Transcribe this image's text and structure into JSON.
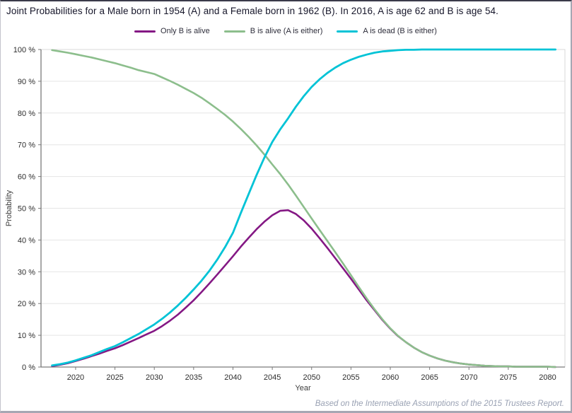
{
  "header": {
    "title": "Joint Probabilities for a Male born in 1954 (A) and a Female born in 1962 (B). In 2016, A is age 62 and B is age 54."
  },
  "legend": {
    "items": [
      {
        "label": "Only B is alive",
        "color": "#841884"
      },
      {
        "label": "B is alive (A is either)",
        "color": "#8CBE8C"
      },
      {
        "label": "A is dead (B is either)",
        "color": "#00C3D6"
      }
    ]
  },
  "footer": {
    "text": "Based on the Intermediate Assumptions of the 2015 Trustees Report."
  },
  "colors": {
    "grid": "#e5e5e5",
    "axis": "#7a7a7a",
    "frame_light": "#d9d9d9",
    "tick_text": "#2d2d2d",
    "axis_label_text": "#3c3c3c"
  },
  "chart_data": {
    "type": "line",
    "title": "Joint Probabilities for a Male born in 1954 (A) and a Female born in 1962 (B). In 2016, A is age 62 and B is age 54.",
    "xlabel": "Year",
    "ylabel": "Probability",
    "xlim": [
      2015.6,
      2082.2
    ],
    "ylim": [
      0,
      100
    ],
    "xticks": [
      2020,
      2025,
      2030,
      2035,
      2040,
      2045,
      2050,
      2055,
      2060,
      2065,
      2070,
      2075,
      2080
    ],
    "yticks": [
      0,
      10,
      20,
      30,
      40,
      50,
      60,
      70,
      80,
      90,
      100
    ],
    "ytick_suffix": " %",
    "grid": "horizontal",
    "legend_position": "top",
    "x": [
      2017,
      2018,
      2019,
      2020,
      2021,
      2022,
      2023,
      2024,
      2025,
      2026,
      2027,
      2028,
      2029,
      2030,
      2031,
      2032,
      2033,
      2034,
      2035,
      2036,
      2037,
      2038,
      2039,
      2040,
      2041,
      2042,
      2043,
      2044,
      2045,
      2046,
      2047,
      2048,
      2049,
      2050,
      2051,
      2052,
      2053,
      2054,
      2055,
      2056,
      2057,
      2058,
      2059,
      2060,
      2061,
      2062,
      2063,
      2064,
      2065,
      2066,
      2067,
      2068,
      2069,
      2070,
      2071,
      2072,
      2073,
      2074,
      2075,
      2076,
      2077,
      2078,
      2079,
      2080,
      2081
    ],
    "series": [
      {
        "name": "Only B is alive",
        "color": "#841884",
        "values": [
          0.3,
          0.7,
          1.2,
          1.9,
          2.6,
          3.4,
          4.2,
          5.1,
          5.9,
          6.9,
          8.0,
          9.1,
          10.3,
          11.4,
          12.9,
          14.6,
          16.5,
          18.7,
          21.0,
          23.6,
          26.3,
          29.1,
          32.0,
          34.9,
          37.9,
          40.7,
          43.4,
          45.8,
          47.8,
          49.2,
          49.4,
          48.2,
          46.2,
          43.6,
          40.6,
          37.5,
          34.3,
          31.1,
          27.8,
          24.4,
          21.0,
          17.9,
          14.8,
          12.1,
          9.7,
          7.8,
          6.1,
          4.7,
          3.6,
          2.7,
          2.0,
          1.5,
          1.1,
          0.8,
          0.6,
          0.4,
          0.3,
          0.2,
          0.2,
          0.1,
          0.1,
          0.1,
          0.1,
          0.1,
          0.0
        ]
      },
      {
        "name": "B is alive (A is either)",
        "color": "#8CBE8C",
        "values": [
          99.8,
          99.4,
          99.0,
          98.5,
          98.0,
          97.5,
          96.9,
          96.3,
          95.7,
          95.0,
          94.3,
          93.5,
          92.9,
          92.3,
          91.2,
          90.1,
          88.9,
          87.6,
          86.3,
          84.8,
          83.1,
          81.3,
          79.4,
          77.3,
          75.0,
          72.5,
          69.8,
          66.9,
          63.8,
          60.8,
          57.5,
          54.0,
          50.4,
          46.8,
          43.2,
          39.7,
          36.2,
          32.6,
          28.9,
          25.2,
          21.6,
          18.2,
          15.0,
          12.2,
          9.8,
          7.8,
          6.1,
          4.7,
          3.6,
          2.7,
          2.0,
          1.5,
          1.1,
          0.8,
          0.6,
          0.4,
          0.3,
          0.2,
          0.2,
          0.1,
          0.1,
          0.1,
          0.1,
          0.1,
          0.0
        ]
      },
      {
        "name": "A is dead (B is either)",
        "color": "#00C3D6",
        "values": [
          0.5,
          0.9,
          1.4,
          2.1,
          2.9,
          3.7,
          4.7,
          5.7,
          6.6,
          7.8,
          9.1,
          10.4,
          11.9,
          13.4,
          15.2,
          17.2,
          19.4,
          21.8,
          24.4,
          27.2,
          30.3,
          33.8,
          37.8,
          42.3,
          48.5,
          54.5,
          60.5,
          66.0,
          70.9,
          74.8,
          78.3,
          82.0,
          85.3,
          88.2,
          90.6,
          92.6,
          94.3,
          95.7,
          96.8,
          97.7,
          98.4,
          99.0,
          99.4,
          99.6,
          99.8,
          99.9,
          99.9,
          100,
          100,
          100,
          100,
          100,
          100,
          100,
          100,
          100,
          100,
          100,
          100,
          100,
          100,
          100,
          100,
          100,
          100
        ]
      }
    ]
  }
}
